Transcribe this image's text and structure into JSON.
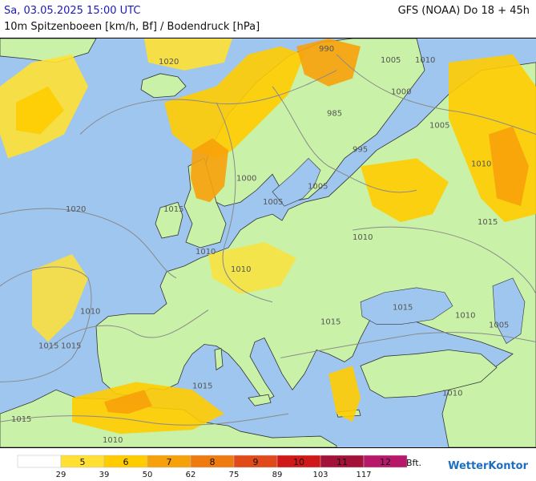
{
  "header": {
    "datetime": "Sa, 03.05.2025 15:00 UTC",
    "model": "GFS (NOAA) Do 18 + 45h",
    "parameter": "10m Spitzenboeen [km/h, Bf] / Bodendruck [hPa]"
  },
  "colors": {
    "sea": "#9ec6ee",
    "land_calm": "#c9f2a8",
    "bf5": "#ffe033",
    "bf6": "#ffcc00",
    "bf7": "#f7a10a",
    "bf8": "#ee7a10",
    "bf9": "#e04a1a",
    "bf10": "#d01818",
    "bf11": "#a31238",
    "bf12": "#b8186a",
    "isobar": "#8a8a8a",
    "border": "#333333"
  },
  "isobar_labels": [
    {
      "text": "1020"
    },
    {
      "text": "1020"
    },
    {
      "text": "1015"
    },
    {
      "text": "1010"
    },
    {
      "text": "1015"
    },
    {
      "text": "1015"
    },
    {
      "text": "1010"
    },
    {
      "text": "1000"
    },
    {
      "text": "1005"
    },
    {
      "text": "1010"
    },
    {
      "text": "1005"
    },
    {
      "text": "995"
    },
    {
      "text": "985"
    },
    {
      "text": "990"
    },
    {
      "text": "1005"
    },
    {
      "text": "1010"
    },
    {
      "text": "1000"
    },
    {
      "text": "1005"
    },
    {
      "text": "1010"
    },
    {
      "text": "1015"
    },
    {
      "text": "1015"
    },
    {
      "text": "1010"
    },
    {
      "text": "1005"
    },
    {
      "text": "1015"
    },
    {
      "text": "1015"
    },
    {
      "text": "1010"
    },
    {
      "text": "1010"
    },
    {
      "text": "1015"
    },
    {
      "text": "1010"
    }
  ],
  "legend": {
    "classes": [
      {
        "bf": "",
        "color": "#ffffff"
      },
      {
        "bf": "5",
        "color": "#ffe033"
      },
      {
        "bf": "6",
        "color": "#ffcc00"
      },
      {
        "bf": "7",
        "color": "#f7a10a"
      },
      {
        "bf": "8",
        "color": "#ee7a10"
      },
      {
        "bf": "9",
        "color": "#e04a1a"
      },
      {
        "bf": "10",
        "color": "#d01818"
      },
      {
        "bf": "11",
        "color": "#a31238"
      },
      {
        "bf": "12",
        "color": "#b8186a"
      }
    ],
    "unit": "Bft.",
    "kmh_thresholds": [
      "29",
      "39",
      "50",
      "62",
      "75",
      "89",
      "103",
      "117"
    ]
  },
  "brand": "WetterKontor"
}
